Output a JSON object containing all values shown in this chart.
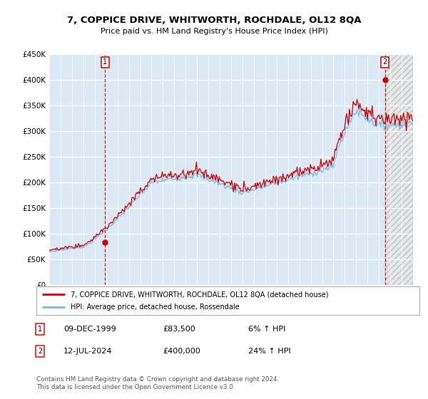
{
  "title": "7, COPPICE DRIVE, WHITWORTH, ROCHDALE, OL12 8QA",
  "subtitle": "Price paid vs. HM Land Registry's House Price Index (HPI)",
  "x_start_year": 1995,
  "x_end_year": 2027,
  "y_min": 0,
  "y_max": 450000,
  "y_ticks": [
    0,
    50000,
    100000,
    150000,
    200000,
    250000,
    300000,
    350000,
    400000,
    450000
  ],
  "y_tick_labels": [
    "£0",
    "£50K",
    "£100K",
    "£150K",
    "£200K",
    "£250K",
    "£300K",
    "£350K",
    "£400K",
    "£450K"
  ],
  "sale1_year": 1999.92,
  "sale1_price": 83500,
  "sale2_year": 2024.53,
  "sale2_price": 400000,
  "hpi_color": "#7ab8e8",
  "price_color": "#cc0000",
  "bg_color": "#dce9f5",
  "grid_color": "#ffffff",
  "legend_line1": "7, COPPICE DRIVE, WHITWORTH, ROCHDALE, OL12 8QA (detached house)",
  "legend_line2": "HPI: Average price, detached house, Rossendale",
  "annotation1_date": "09-DEC-1999",
  "annotation1_price": "£83,500",
  "annotation1_pct": "6% ↑ HPI",
  "annotation2_date": "12-JUL-2024",
  "annotation2_price": "£400,000",
  "annotation2_pct": "24% ↑ HPI",
  "footnote": "Contains HM Land Registry data © Crown copyright and database right 2024.\nThis data is licensed under the Open Government Licence v3.0."
}
